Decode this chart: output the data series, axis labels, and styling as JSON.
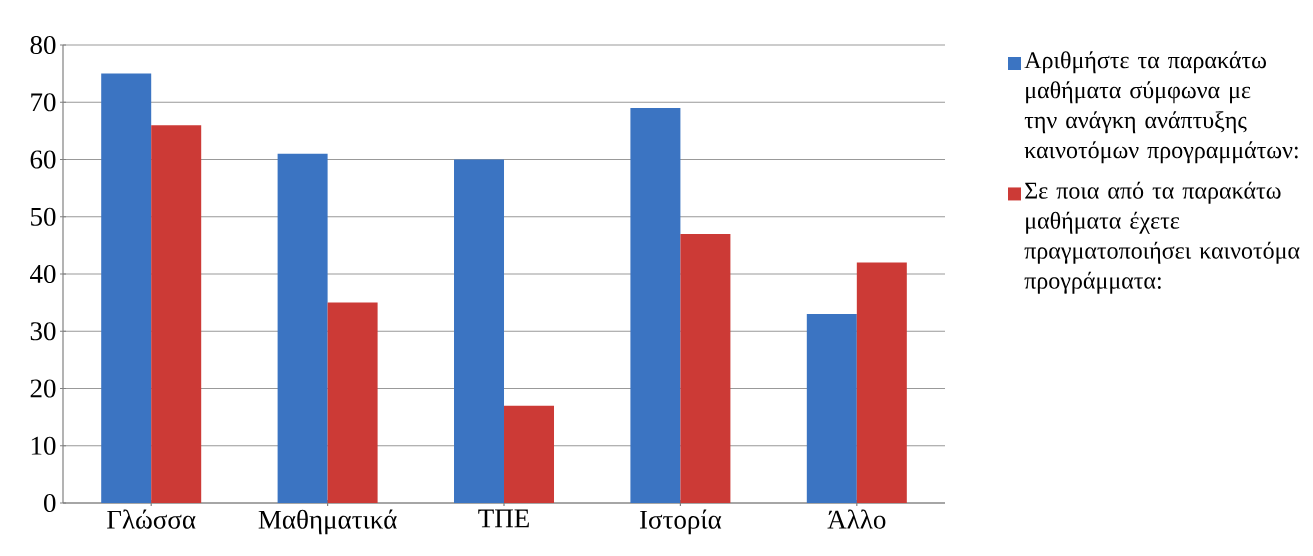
{
  "chart_data": {
    "type": "bar",
    "categories": [
      "Γλώσσα",
      "Μαθηματικά",
      "ΤΠΕ",
      "Ιστορία",
      "Άλλο"
    ],
    "series": [
      {
        "name": "Αριθμήστε τα παρακάτω μαθήματα σύμφωνα με την ανάγκη ανάπτυξης καινοτόμων προγραμμάτων:",
        "color": "#3b74c2",
        "values": [
          75,
          61,
          60,
          69,
          33
        ]
      },
      {
        "name": "Σε ποια από τα παρακάτω μαθήματα έχετε πραγματοποιήσει καινοτόμα προγράμματα:",
        "color": "#cc3a36",
        "values": [
          66,
          35,
          17,
          47,
          42
        ]
      }
    ],
    "ylim": [
      0,
      80
    ],
    "yticks": [
      0,
      10,
      20,
      30,
      40,
      50,
      60,
      70,
      80
    ],
    "grid": "y",
    "legend": "right"
  }
}
